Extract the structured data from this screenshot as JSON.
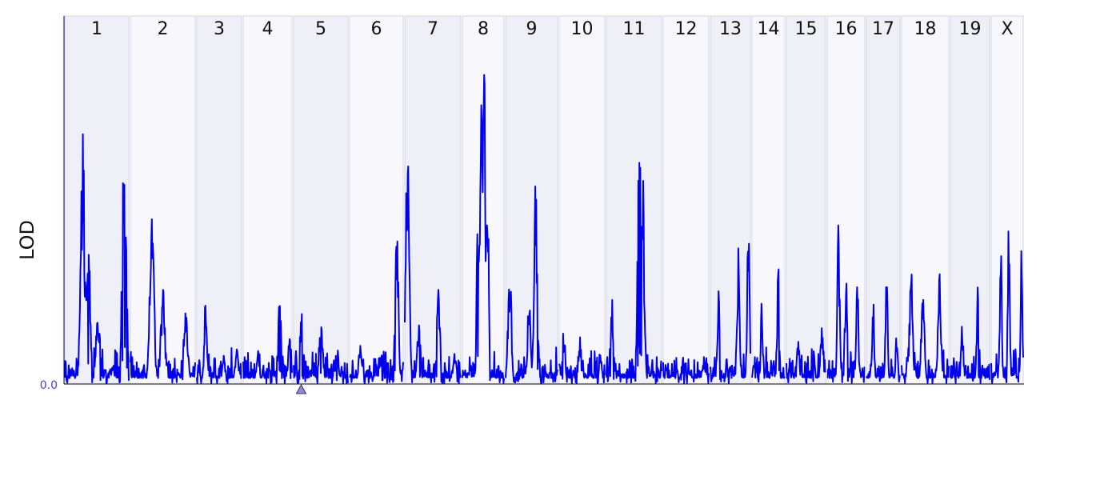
{
  "colors": {
    "line": "#0000ee",
    "band_dark": "#efeff8",
    "band_light": "#f8f8fc",
    "band_border": "#d4d4e4",
    "axis": "#000088",
    "tick_label": "#4444cc",
    "marker_fill": "#9a86cc",
    "marker_stroke": "#333366"
  },
  "chart_data": {
    "type": "line",
    "title": "",
    "xlabel": "",
    "ylabel": "LOD",
    "ylim": [
      0,
      5.0
    ],
    "y_ticks": [
      {
        "value": 0,
        "label": "0.0"
      }
    ],
    "grid": false,
    "legend": "none",
    "marker": {
      "chromosome": "5",
      "position": 0.15,
      "shape": "triangle"
    },
    "chromosomes": [
      {
        "label": "1",
        "peaks": [
          [
            0.28,
            3.5
          ],
          [
            0.36,
            2.4
          ],
          [
            0.52,
            1.1
          ],
          [
            0.75,
            0.3
          ],
          [
            0.93,
            3.5
          ]
        ]
      },
      {
        "label": "2",
        "peaks": [
          [
            0.33,
            2.6
          ],
          [
            0.5,
            1.4
          ],
          [
            0.85,
            1.2
          ]
        ]
      },
      {
        "label": "3",
        "peaks": [
          [
            0.2,
            1.3
          ],
          [
            0.6,
            0.4
          ],
          [
            0.9,
            0.5
          ]
        ]
      },
      {
        "label": "4",
        "peaks": [
          [
            0.3,
            0.5
          ],
          [
            0.75,
            1.3
          ],
          [
            0.95,
            0.7
          ]
        ]
      },
      {
        "label": "5",
        "peaks": [
          [
            0.15,
            1.25
          ],
          [
            0.5,
            1.1
          ],
          [
            0.8,
            0.5
          ]
        ]
      },
      {
        "label": "6",
        "peaks": [
          [
            0.2,
            0.6
          ],
          [
            0.6,
            0.5
          ],
          [
            0.88,
            2.2
          ]
        ]
      },
      {
        "label": "7",
        "peaks": [
          [
            0.05,
            3.8
          ],
          [
            0.25,
            0.9
          ],
          [
            0.6,
            1.4
          ],
          [
            0.9,
            0.5
          ]
        ]
      },
      {
        "label": "8",
        "peaks": [
          [
            0.38,
            2.8
          ],
          [
            0.45,
            4.6
          ],
          [
            0.52,
            4.7
          ],
          [
            0.6,
            3.0
          ]
        ]
      },
      {
        "label": "9",
        "peaks": [
          [
            0.08,
            1.8
          ],
          [
            0.45,
            1.2
          ],
          [
            0.58,
            2.9
          ]
        ]
      },
      {
        "label": "10",
        "peaks": [
          [
            0.1,
            0.8
          ],
          [
            0.45,
            0.7
          ],
          [
            0.9,
            0.5
          ]
        ]
      },
      {
        "label": "11",
        "peaks": [
          [
            0.1,
            1.2
          ],
          [
            0.6,
            4.3
          ],
          [
            0.65,
            3.3
          ]
        ]
      },
      {
        "label": "12",
        "peaks": [
          [
            0.3,
            0.2
          ],
          [
            0.6,
            0.1
          ],
          [
            0.9,
            0.4
          ]
        ]
      },
      {
        "label": "13",
        "peaks": [
          [
            0.2,
            1.3
          ],
          [
            0.7,
            1.9
          ],
          [
            0.95,
            2.2
          ]
        ]
      },
      {
        "label": "14",
        "peaks": [
          [
            0.3,
            1.2
          ],
          [
            0.8,
            1.8
          ]
        ]
      },
      {
        "label": "15",
        "peaks": [
          [
            0.3,
            0.7
          ],
          [
            0.7,
            0.5
          ],
          [
            0.9,
            0.9
          ]
        ]
      },
      {
        "label": "16",
        "peaks": [
          [
            0.3,
            2.2
          ],
          [
            0.5,
            1.7
          ],
          [
            0.8,
            1.5
          ]
        ]
      },
      {
        "label": "17",
        "peaks": [
          [
            0.2,
            1.3
          ],
          [
            0.6,
            1.6
          ],
          [
            0.9,
            0.8
          ]
        ]
      },
      {
        "label": "18",
        "peaks": [
          [
            0.2,
            1.7
          ],
          [
            0.45,
            1.5
          ],
          [
            0.8,
            1.7
          ]
        ]
      },
      {
        "label": "19",
        "peaks": [
          [
            0.3,
            0.8
          ],
          [
            0.7,
            1.5
          ]
        ]
      },
      {
        "label": "X",
        "peaks": [
          [
            0.3,
            2.0
          ],
          [
            0.55,
            2.4
          ],
          [
            0.95,
            1.9
          ]
        ]
      }
    ]
  }
}
